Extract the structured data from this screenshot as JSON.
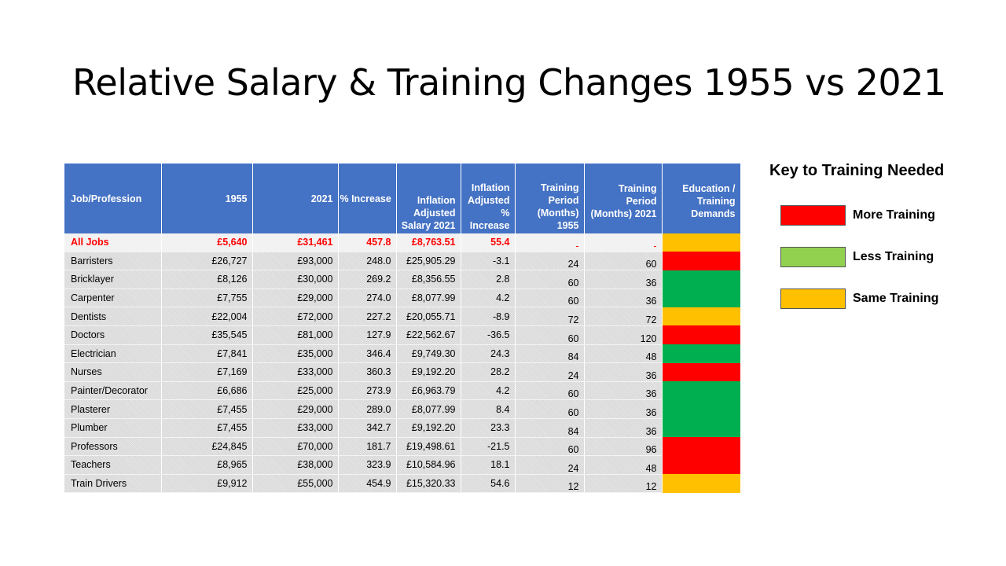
{
  "title": "Relative Salary & Training Changes 1955 vs 2021",
  "headers": {
    "job": "Job/Profession",
    "y1955": "1955",
    "y2021": "2021",
    "increase": "% Increase",
    "adj_salary": "Inflation Adjusted Salary 2021",
    "adj_increase": "Inflation Adjusted % Increase",
    "tp1955": "Training Period (Months) 1955",
    "tp2021": "Training Period (Months) 2021",
    "demands": "Education / Training Demands"
  },
  "colors": {
    "more": "#ff0000",
    "less": "#00b050",
    "same": "#ffc000",
    "header": "#4472c4"
  },
  "rows": [
    {
      "job": "All Jobs",
      "s1955": "£5,640",
      "s2021": "£31,461",
      "inc": "457.8",
      "adj": "£8,763.51",
      "adjinc": "55.4",
      "tp1955": "-",
      "tp2021": "-",
      "demand": "same"
    },
    {
      "job": "Barristers",
      "s1955": "£26,727",
      "s2021": "£93,000",
      "inc": "248.0",
      "adj": "£25,905.29",
      "adjinc": "-3.1",
      "tp1955": "24",
      "tp2021": "60",
      "demand": "more"
    },
    {
      "job": "Bricklayer",
      "s1955": "£8,126",
      "s2021": "£30,000",
      "inc": "269.2",
      "adj": "£8,356.55",
      "adjinc": "2.8",
      "tp1955": "60",
      "tp2021": "36",
      "demand": "less"
    },
    {
      "job": "Carpenter",
      "s1955": "£7,755",
      "s2021": "£29,000",
      "inc": "274.0",
      "adj": "£8,077.99",
      "adjinc": "4.2",
      "tp1955": "60",
      "tp2021": "36",
      "demand": "less"
    },
    {
      "job": "Dentists",
      "s1955": "£22,004",
      "s2021": "£72,000",
      "inc": "227.2",
      "adj": "£20,055.71",
      "adjinc": "-8.9",
      "tp1955": "72",
      "tp2021": "72",
      "demand": "same"
    },
    {
      "job": "Doctors",
      "s1955": "£35,545",
      "s2021": "£81,000",
      "inc": "127.9",
      "adj": "£22,562.67",
      "adjinc": "-36.5",
      "tp1955": "60",
      "tp2021": "120",
      "demand": "more"
    },
    {
      "job": "Electrician",
      "s1955": "£7,841",
      "s2021": "£35,000",
      "inc": "346.4",
      "adj": "£9,749.30",
      "adjinc": "24.3",
      "tp1955": "84",
      "tp2021": "48",
      "demand": "less"
    },
    {
      "job": "Nurses",
      "s1955": "£7,169",
      "s2021": "£33,000",
      "inc": "360.3",
      "adj": "£9,192.20",
      "adjinc": "28.2",
      "tp1955": "24",
      "tp2021": "36",
      "demand": "more"
    },
    {
      "job": "Painter/Decorator",
      "s1955": "£6,686",
      "s2021": "£25,000",
      "inc": "273.9",
      "adj": "£6,963.79",
      "adjinc": "4.2",
      "tp1955": "60",
      "tp2021": "36",
      "demand": "less"
    },
    {
      "job": "Plasterer",
      "s1955": "£7,455",
      "s2021": "£29,000",
      "inc": "289.0",
      "adj": "£8,077.99",
      "adjinc": "8.4",
      "tp1955": "60",
      "tp2021": "36",
      "demand": "less"
    },
    {
      "job": "Plumber",
      "s1955": "£7,455",
      "s2021": "£33,000",
      "inc": "342.7",
      "adj": "£9,192.20",
      "adjinc": "23.3",
      "tp1955": "84",
      "tp2021": "36",
      "demand": "less"
    },
    {
      "job": "Professors",
      "s1955": "£24,845",
      "s2021": "£70,000",
      "inc": "181.7",
      "adj": "£19,498.61",
      "adjinc": "-21.5",
      "tp1955": "60",
      "tp2021": "96",
      "demand": "more"
    },
    {
      "job": "Teachers",
      "s1955": "£8,965",
      "s2021": "£38,000",
      "inc": "323.9",
      "adj": "£10,584.96",
      "adjinc": "18.1",
      "tp1955": "24",
      "tp2021": "48",
      "demand": "more"
    },
    {
      "job": "Train Drivers",
      "s1955": "£9,912",
      "s2021": "£55,000",
      "inc": "454.9",
      "adj": "£15,320.33",
      "adjinc": "54.6",
      "tp1955": "12",
      "tp2021": "12",
      "demand": "same"
    }
  ],
  "key": {
    "title": "Key to Training Needed",
    "items": [
      {
        "label": "More Training",
        "color": "#ff0000"
      },
      {
        "label": "Less Training",
        "color": "#92d050"
      },
      {
        "label": "Same Training",
        "color": "#ffc000"
      }
    ]
  }
}
